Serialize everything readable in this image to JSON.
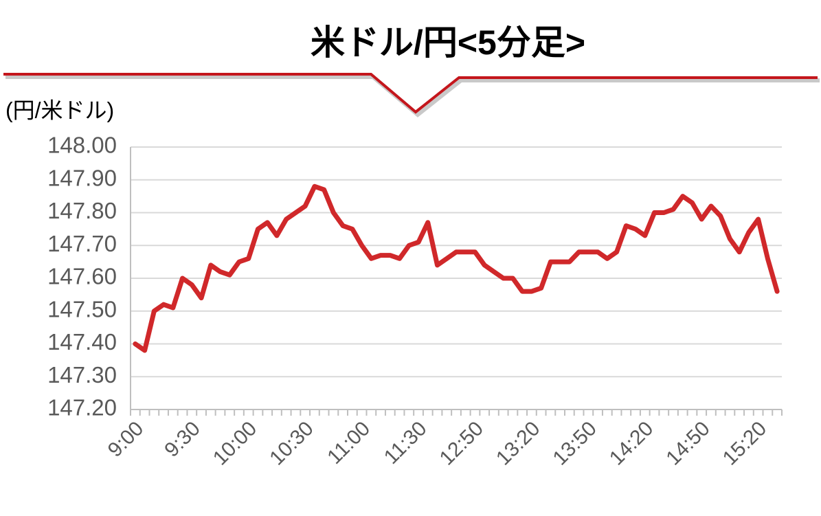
{
  "chart_data": {
    "type": "line",
    "title": "米ドル/円<5分足>",
    "y_label": "(円/米ドル)",
    "categories": [
      "9:00",
      null,
      null,
      null,
      null,
      null,
      "9:30",
      null,
      null,
      null,
      null,
      null,
      "10:00",
      null,
      null,
      null,
      null,
      null,
      "10:30",
      null,
      null,
      null,
      null,
      null,
      "11:00",
      null,
      null,
      null,
      null,
      null,
      "11:30",
      null,
      null,
      null,
      null,
      null,
      "12:50",
      null,
      null,
      null,
      null,
      null,
      "13:20",
      null,
      null,
      null,
      null,
      null,
      "13:50",
      null,
      null,
      null,
      null,
      null,
      "14:20",
      null,
      null,
      null,
      null,
      null,
      "14:50",
      null,
      null,
      null,
      null,
      null,
      "15:20",
      null,
      null
    ],
    "series": [
      {
        "name": "米ドル/円",
        "color": "#d0282a",
        "values": [
          147.4,
          147.38,
          147.5,
          147.52,
          147.51,
          147.6,
          147.58,
          147.54,
          147.64,
          147.62,
          147.61,
          147.65,
          147.66,
          147.75,
          147.77,
          147.73,
          147.78,
          147.8,
          147.82,
          147.88,
          147.87,
          147.8,
          147.76,
          147.75,
          147.7,
          147.66,
          147.67,
          147.67,
          147.66,
          147.7,
          147.71,
          147.77,
          147.64,
          147.66,
          147.68,
          147.68,
          147.68,
          147.64,
          147.62,
          147.6,
          147.6,
          147.56,
          147.56,
          147.57,
          147.65,
          147.65,
          147.65,
          147.68,
          147.68,
          147.68,
          147.66,
          147.68,
          147.76,
          147.75,
          147.73,
          147.8,
          147.8,
          147.81,
          147.85,
          147.83,
          147.78,
          147.82,
          147.79,
          147.72,
          147.68,
          147.74,
          147.78,
          147.66,
          147.56
        ]
      }
    ],
    "ylim": [
      147.2,
      148.0
    ],
    "yticks": [
      {
        "value": 147.2,
        "label": "147.20"
      },
      {
        "value": 147.3,
        "label": "147.30"
      },
      {
        "value": 147.4,
        "label": "147.40"
      },
      {
        "value": 147.5,
        "label": "147.50"
      },
      {
        "value": 147.6,
        "label": "147.60"
      },
      {
        "value": 147.7,
        "label": "147.70"
      },
      {
        "value": 147.8,
        "label": "147.80"
      },
      {
        "value": 147.9,
        "label": "147.90"
      },
      {
        "value": 148.0,
        "label": "148.00"
      }
    ],
    "grid": true
  }
}
